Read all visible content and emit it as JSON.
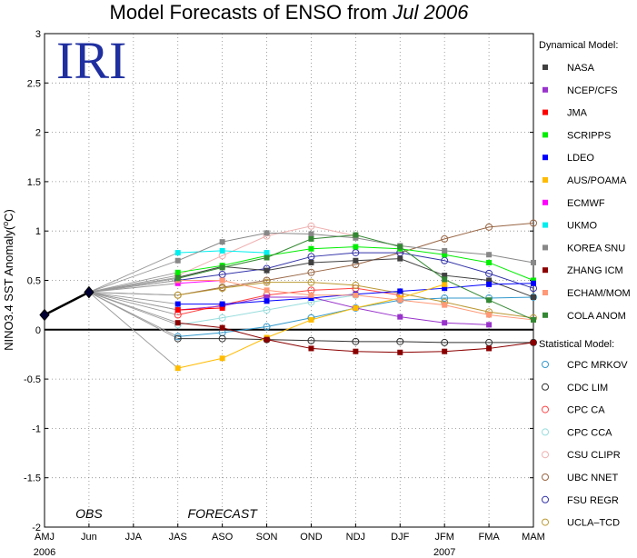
{
  "chart_data": {
    "type": "line",
    "title_prefix": "Model Forecasts of ENSO from ",
    "title_date": "Jul 2006",
    "logo_text": "IRI",
    "ylabel": "NINO3.4 SST Anomaly(",
    "ylabel_sup": "o",
    "ylabel_suffix": "C)",
    "ylim": [
      -2,
      3
    ],
    "yticks": [
      "-2",
      "-1.5",
      "-1",
      "-0.5",
      "0",
      "0.5",
      "1",
      "1.5",
      "2",
      "2.5",
      "3"
    ],
    "categories": [
      "AMJ",
      "Jun",
      "JJA",
      "JAS",
      "ASO",
      "SON",
      "OND",
      "NDJ",
      "DJF",
      "JFM",
      "FMA",
      "MAM"
    ],
    "year_labels": [
      {
        "label": "2006",
        "index": 0
      },
      {
        "label": "2007",
        "index": 9
      }
    ],
    "annotations": [
      {
        "label": "OBS",
        "index": 1
      },
      {
        "label": "FORECAST",
        "index": 4
      }
    ],
    "grid": true,
    "legend_position": "right",
    "observed": {
      "x": [
        0,
        1
      ],
      "values": [
        0.15,
        0.38
      ],
      "color": "#000000"
    },
    "dynamical_header": "Dynamical Model:",
    "statistical_header": "Statistical Model:",
    "dynamical": [
      {
        "name": "NASA",
        "color": "#404040",
        "values": [
          0.53,
          0.64,
          0.6,
          0.68,
          0.7,
          0.72,
          0.55,
          0.5,
          0.33
        ]
      },
      {
        "name": "NCEP/CFS",
        "color": "#9933cc",
        "values": [
          0.2,
          0.24,
          0.33,
          0.33,
          0.22,
          0.13,
          0.07,
          0.05,
          null
        ]
      },
      {
        "name": "JMA",
        "color": "#ff0000",
        "values": [
          0.2,
          0.22,
          null,
          null,
          null,
          null,
          null,
          null,
          null
        ]
      },
      {
        "name": "SCRIPPS",
        "color": "#00ee00",
        "values": [
          0.58,
          0.65,
          0.75,
          0.82,
          0.84,
          0.82,
          0.76,
          0.68,
          0.5
        ]
      },
      {
        "name": "LDEO",
        "color": "#0000ff",
        "values": [
          0.26,
          0.26,
          0.29,
          0.32,
          0.36,
          0.39,
          0.42,
          0.46,
          0.47
        ]
      },
      {
        "name": "AUS/POAMA",
        "color": "#ffbb00",
        "values": [
          -0.39,
          -0.29,
          -0.08,
          0.1,
          0.22,
          0.32,
          0.46,
          null,
          null
        ]
      },
      {
        "name": "ECMWF",
        "color": "#ff00ff",
        "values": [
          0.47,
          0.5,
          null,
          null,
          null,
          null,
          null,
          null,
          null
        ]
      },
      {
        "name": "UKMO",
        "color": "#00eeee",
        "values": [
          0.78,
          0.8,
          0.78,
          null,
          null,
          null,
          null,
          null,
          null
        ]
      },
      {
        "name": "KOREA SNU",
        "color": "#888888",
        "values": [
          0.7,
          0.89,
          0.98,
          0.97,
          0.93,
          0.85,
          0.8,
          0.76,
          0.68
        ]
      },
      {
        "name": "ZHANG ICM",
        "color": "#8b0000",
        "values": [
          0.07,
          0.02,
          -0.1,
          -0.19,
          -0.22,
          -0.23,
          -0.22,
          -0.19,
          -0.13
        ]
      },
      {
        "name": "ECHAM/MOM",
        "color": "#ff9977",
        "values": [
          0.5,
          0.5,
          0.4,
          0.35,
          0.35,
          0.3,
          0.25,
          0.15,
          0.1
        ]
      },
      {
        "name": "COLA ANOM",
        "color": "#338833",
        "values": [
          0.52,
          0.63,
          0.73,
          0.92,
          0.96,
          0.84,
          0.51,
          0.3,
          0.1
        ]
      }
    ],
    "statistical": [
      {
        "name": "CPC MRKOV",
        "color": "#3399cc",
        "values": [
          -0.07,
          -0.03,
          0.03,
          0.12,
          0.22,
          0.3,
          0.32,
          0.32,
          0.33
        ]
      },
      {
        "name": "CDC LIM",
        "color": "#303030",
        "values": [
          -0.09,
          -0.09,
          -0.1,
          -0.11,
          -0.12,
          -0.12,
          -0.13,
          -0.13,
          -0.13
        ]
      },
      {
        "name": "CPC CA",
        "color": "#ff4444",
        "values": [
          0.15,
          0.25,
          0.35,
          0.4,
          0.42,
          0.35,
          null,
          null,
          null
        ]
      },
      {
        "name": "CPC CCA",
        "color": "#99dddd",
        "values": [
          0.05,
          0.12,
          0.2,
          0.28,
          0.35,
          null,
          null,
          null,
          null
        ]
      },
      {
        "name": "CSU CLIPR",
        "color": "#f0b0b0",
        "values": [
          0.55,
          0.75,
          0.95,
          1.05,
          0.95,
          null,
          null,
          null,
          null
        ]
      },
      {
        "name": "UBC NNET",
        "color": "#996644",
        "values": [
          0.35,
          0.43,
          0.5,
          0.58,
          0.66,
          0.78,
          0.92,
          1.04,
          1.08
        ]
      },
      {
        "name": "FSU REGR",
        "color": "#3333aa",
        "values": [
          0.5,
          0.56,
          0.62,
          0.74,
          0.78,
          0.78,
          0.7,
          0.57,
          0.42
        ]
      },
      {
        "name": "UCLA–TCD",
        "color": "#bb9933",
        "values": [
          0.35,
          0.42,
          0.48,
          0.48,
          0.45,
          0.37,
          0.28,
          0.18,
          0.12
        ]
      }
    ]
  }
}
